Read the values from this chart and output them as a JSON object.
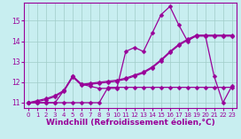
{
  "xlabel": "Windchill (Refroidissement éolien,°C)",
  "background_color": "#c8eef0",
  "grid_color": "#a0ccc8",
  "line_color": "#990099",
  "xlim": [
    -0.5,
    23.5
  ],
  "ylim": [
    10.72,
    15.88
  ],
  "yticks": [
    11,
    12,
    13,
    14,
    15
  ],
  "xticks": [
    0,
    1,
    2,
    3,
    4,
    5,
    6,
    7,
    8,
    9,
    10,
    11,
    12,
    13,
    14,
    15,
    16,
    17,
    18,
    19,
    20,
    21,
    22,
    23
  ],
  "series": {
    "line1": [
      11.0,
      11.0,
      11.0,
      11.0,
      11.6,
      12.3,
      11.9,
      11.8,
      11.7,
      11.7,
      11.7,
      13.5,
      13.7,
      13.5,
      14.4,
      15.3,
      15.7,
      14.8,
      14.0,
      14.3,
      14.3,
      12.3,
      11.0,
      11.8
    ],
    "line2": [
      11.0,
      11.0,
      11.0,
      11.0,
      11.0,
      11.0,
      11.0,
      11.0,
      11.0,
      11.75,
      11.75,
      11.75,
      11.75,
      11.75,
      11.75,
      11.75,
      11.75,
      11.75,
      11.75,
      11.75,
      11.75,
      11.75,
      11.75,
      11.75
    ],
    "line3": [
      11.0,
      11.1,
      11.2,
      11.35,
      11.6,
      12.3,
      11.9,
      11.95,
      12.0,
      12.05,
      12.1,
      12.2,
      12.35,
      12.5,
      12.75,
      13.1,
      13.5,
      13.85,
      14.1,
      14.3,
      14.3,
      14.3,
      14.3,
      14.3
    ],
    "line4": [
      11.0,
      11.05,
      11.15,
      11.3,
      11.55,
      12.25,
      11.85,
      11.9,
      11.95,
      12.0,
      12.05,
      12.15,
      12.3,
      12.45,
      12.7,
      13.05,
      13.45,
      13.8,
      14.05,
      14.25,
      14.25,
      14.25,
      14.25,
      14.25
    ]
  },
  "marker": "D",
  "markersize": 2.5,
  "linewidth": 0.9,
  "tick_fontsize": 5.5,
  "xlabel_fontsize": 6.5
}
